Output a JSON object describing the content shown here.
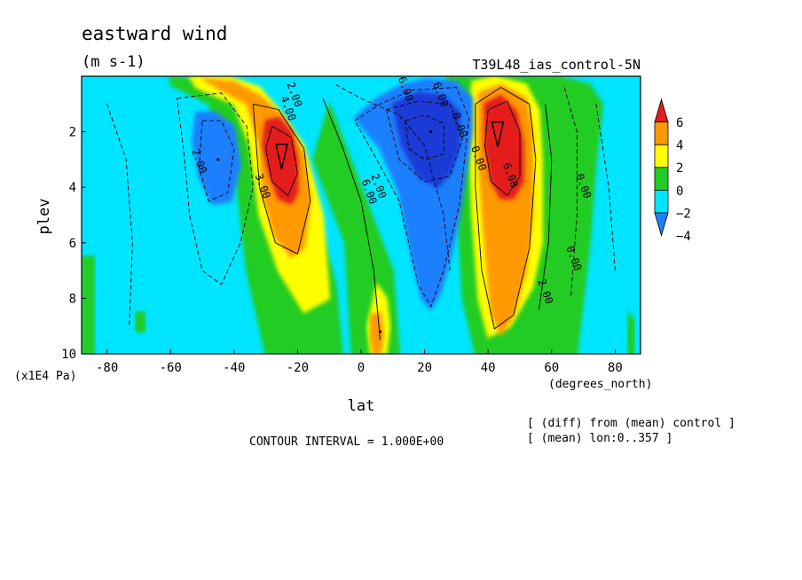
{
  "chart_data": {
    "type": "heatmap",
    "title": "eastward wind",
    "units": "(m s-1)",
    "run_label": "T39L48_ias_control-5N",
    "xlabel": "lat",
    "xunits": "(degrees_north)",
    "ylabel": "plev",
    "yunits": "(x1E4 Pa)",
    "xlim": [
      -88,
      88
    ],
    "ylim": [
      10,
      0
    ],
    "xticks": [
      "-80",
      "-60",
      "-40",
      "-20",
      "0",
      "20",
      "40",
      "60",
      "80"
    ],
    "xtick_values": [
      -80,
      -60,
      -40,
      -20,
      0,
      20,
      40,
      60,
      80
    ],
    "yticks": [
      "2",
      "4",
      "6",
      "8",
      "10"
    ],
    "ytick_values": [
      2,
      4,
      6,
      8,
      10
    ],
    "contour_interval": "CONTOUR INTERVAL = 1.000E+00",
    "notes": [
      "[ (diff) from (mean) control ]",
      "[ (mean) lon:0..357 ]"
    ],
    "colorbar": {
      "levels": [
        "6",
        "4",
        "2",
        "0",
        "−2",
        "−4"
      ],
      "colors": [
        "#e41a1c",
        "#ff9900",
        "#ffff00",
        "#22cc22",
        "#00e5ff",
        "#1e7fff"
      ]
    },
    "contour_labels": [
      {
        "text": "2.00",
        "x": -52,
        "y": 3.1
      },
      {
        "text": "2.00",
        "x": -22,
        "y": 0.7
      },
      {
        "text": "4.00",
        "x": -24,
        "y": 1.2
      },
      {
        "text": "3.00",
        "x": -32,
        "y": 4.0
      },
      {
        "text": "6.00",
        "x": 1.5,
        "y": 4.2
      },
      {
        "text": "2.00",
        "x": 4.5,
        "y": 4.0
      },
      {
        "text": "6.00",
        "x": 13,
        "y": 0.5
      },
      {
        "text": "6.00",
        "x": 24,
        "y": 0.7
      },
      {
        "text": "0.00",
        "x": 30,
        "y": 1.8
      },
      {
        "text": "0.00",
        "x": 36,
        "y": 3.0
      },
      {
        "text": "6.00",
        "x": 46,
        "y": 3.6
      },
      {
        "text": "2.00",
        "x": 57,
        "y": 7.8
      },
      {
        "text": "0.00",
        "x": 69,
        "y": 4.0
      },
      {
        "text": "0.00",
        "x": 66,
        "y": 6.6
      }
    ],
    "features": [
      {
        "kind": "positive_max",
        "x": -25,
        "y": 2.8,
        "value": 6
      },
      {
        "kind": "positive_max",
        "x": 43,
        "y": 2.0,
        "value": 6
      },
      {
        "kind": "negative_min",
        "x": 22,
        "y": 2.0,
        "value": -6
      },
      {
        "kind": "negative_min",
        "x": -45,
        "y": 3.0,
        "value": -4
      },
      {
        "kind": "positive_max",
        "x": 6,
        "y": 9.2,
        "value": 4
      }
    ]
  }
}
